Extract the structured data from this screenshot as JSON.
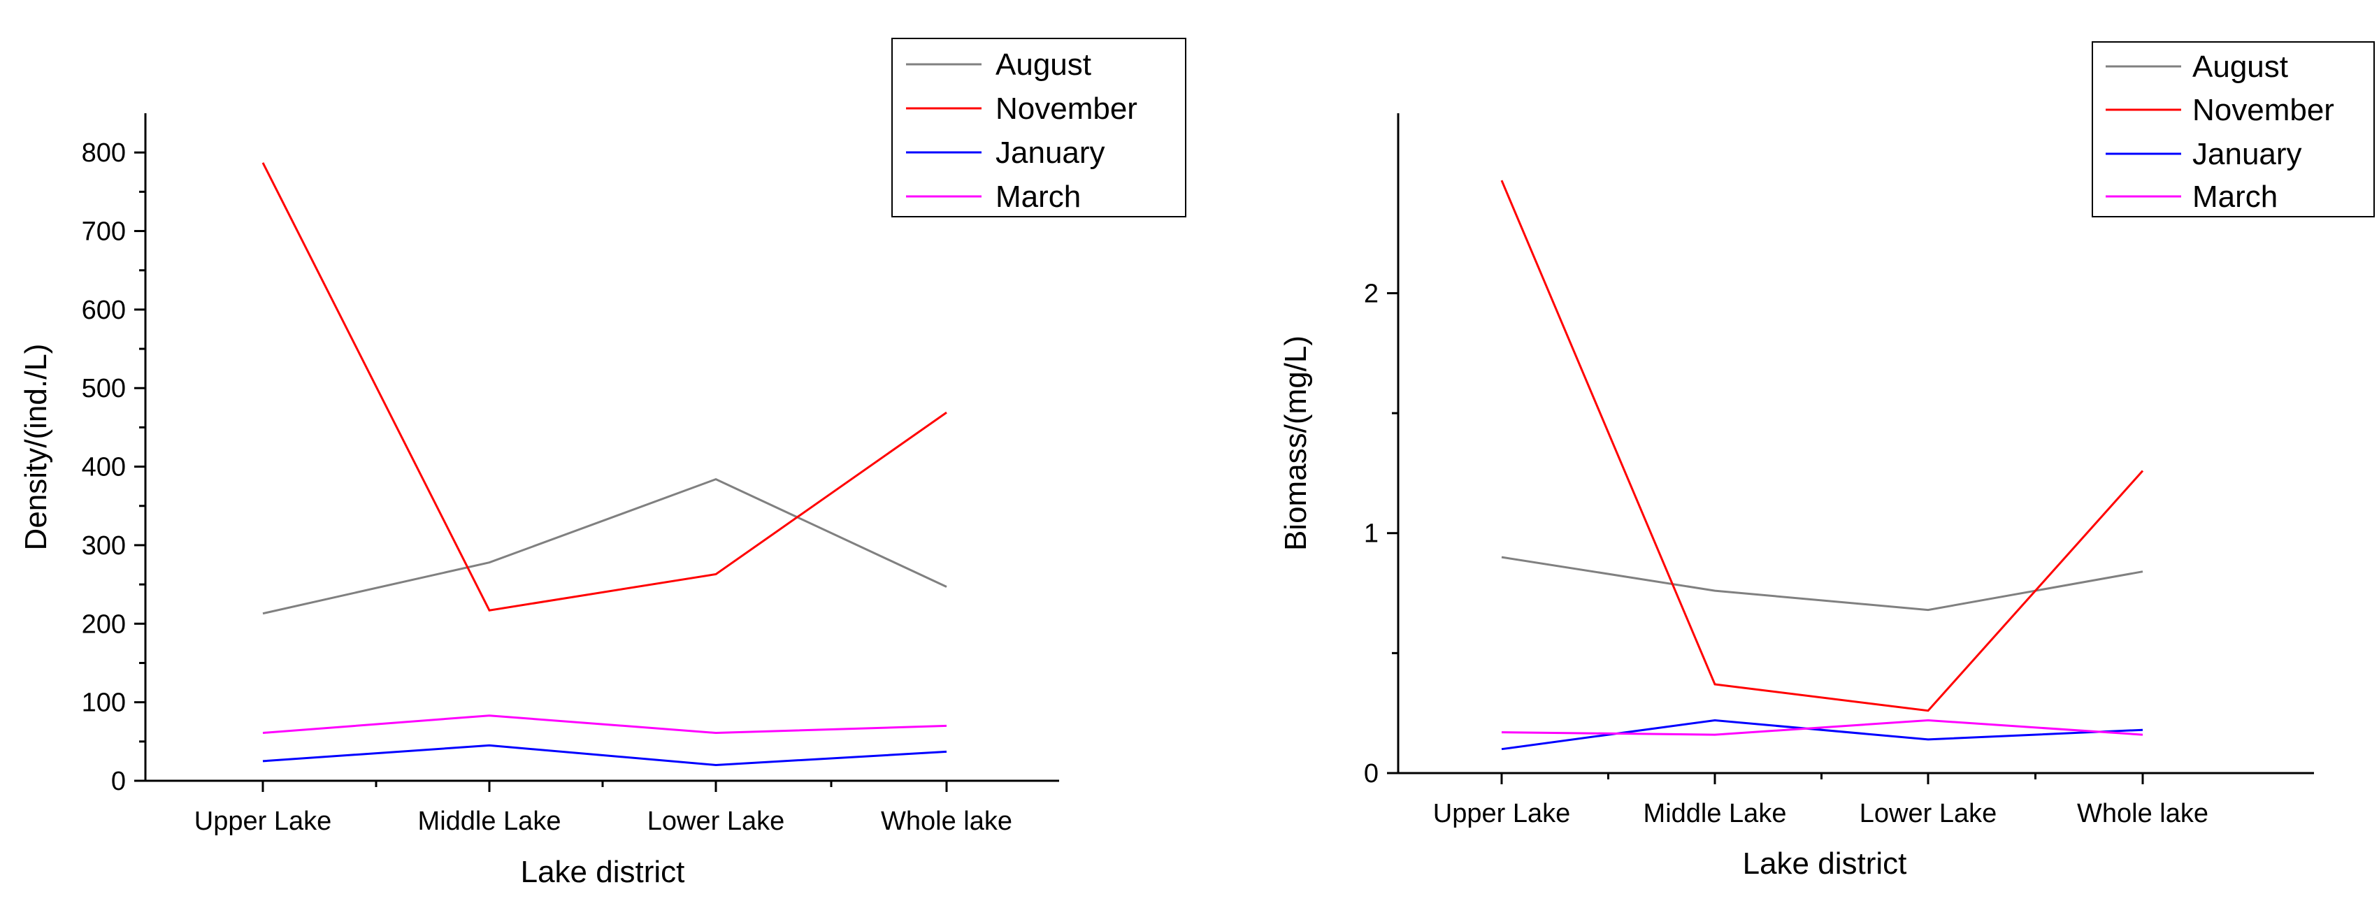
{
  "chart_data": [
    {
      "type": "line",
      "title": "",
      "xlabel": "Lake district",
      "ylabel": "Density/(ind./L)",
      "categories": [
        "Upper Lake",
        "Middle Lake",
        "Lower Lake",
        "Whole lake"
      ],
      "ylim": [
        0,
        850
      ],
      "yticks": [
        0,
        100,
        200,
        300,
        400,
        500,
        600,
        700,
        800
      ],
      "legend_position": "top-right",
      "grid": false,
      "series": [
        {
          "name": "August",
          "color": "#808080",
          "values": [
            213,
            278,
            384,
            247
          ]
        },
        {
          "name": "November",
          "color": "#ff0000",
          "values": [
            787,
            217,
            263,
            469
          ]
        },
        {
          "name": "January",
          "color": "#0000ff",
          "values": [
            25,
            45,
            20,
            37
          ]
        },
        {
          "name": "March",
          "color": "#ff00ff",
          "values": [
            61,
            83,
            61,
            70
          ]
        }
      ]
    },
    {
      "type": "line",
      "title": "",
      "xlabel": "Lake district",
      "ylabel": "Biomass/(mg/L)",
      "categories": [
        "Upper Lake",
        "Middle Lake",
        "Lower Lake",
        "Whole lake"
      ],
      "ylim": [
        0,
        2.75
      ],
      "yticks": [
        0,
        1,
        2
      ],
      "legend_position": "top-right",
      "grid": false,
      "series": [
        {
          "name": "August",
          "color": "#808080",
          "values": [
            0.9,
            0.76,
            0.68,
            0.84
          ]
        },
        {
          "name": "November",
          "color": "#ff0000",
          "values": [
            2.47,
            0.37,
            0.26,
            1.26
          ]
        },
        {
          "name": "January",
          "color": "#0000ff",
          "values": [
            0.1,
            0.22,
            0.14,
            0.18
          ]
        },
        {
          "name": "March",
          "color": "#ff00ff",
          "values": [
            0.17,
            0.16,
            0.22,
            0.16
          ]
        }
      ]
    }
  ]
}
